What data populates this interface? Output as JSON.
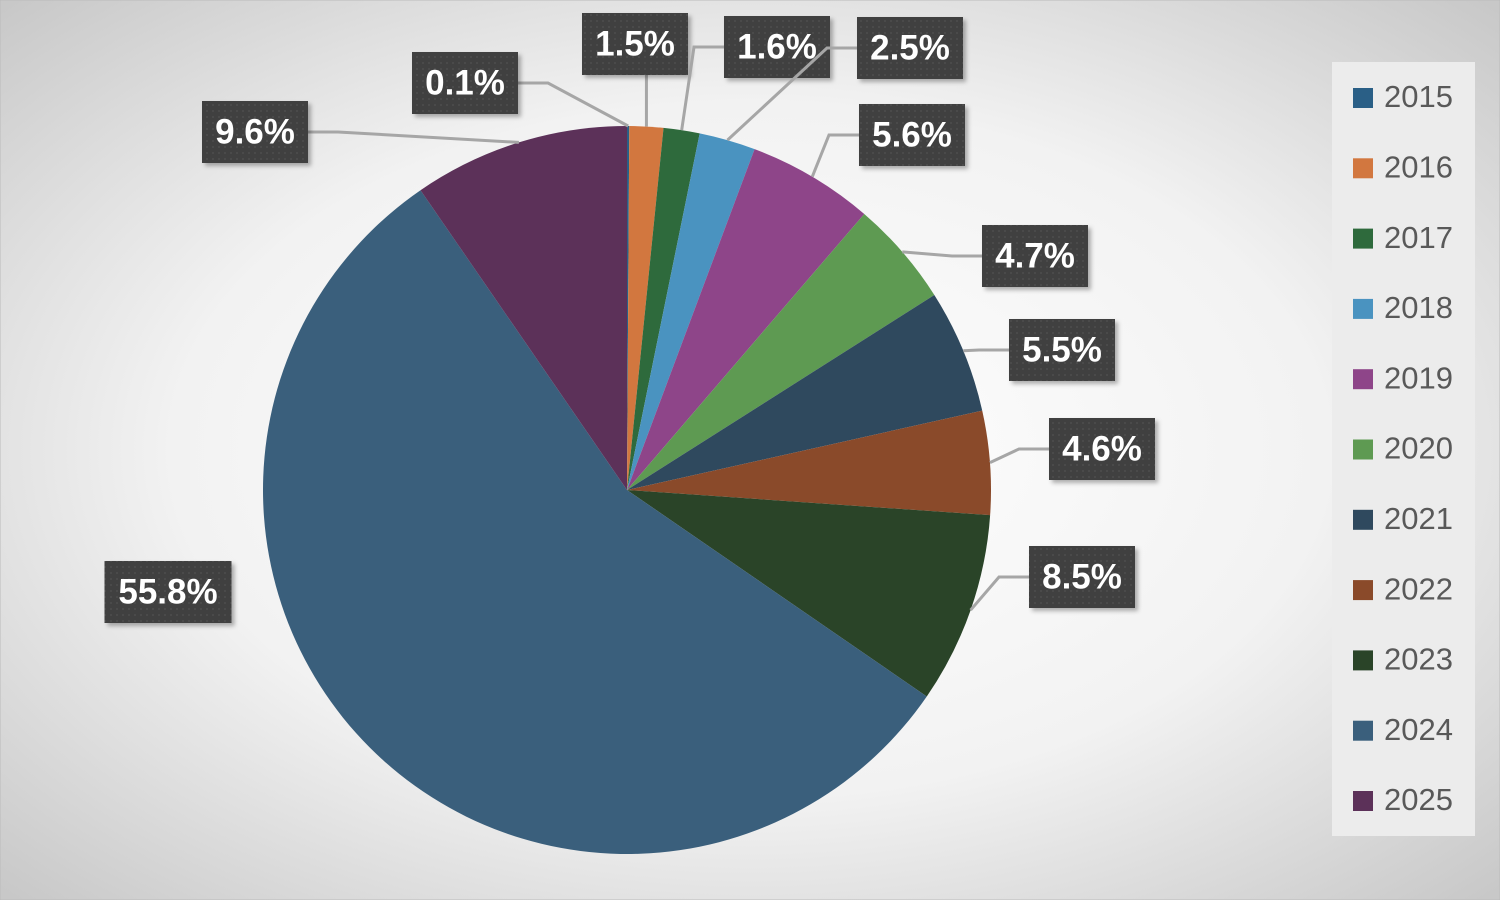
{
  "chart_data": {
    "type": "pie",
    "categories": [
      "2015",
      "2016",
      "2017",
      "2018",
      "2019",
      "2020",
      "2021",
      "2022",
      "2023",
      "2024",
      "2025"
    ],
    "values": [
      0.1,
      1.5,
      1.6,
      2.5,
      5.6,
      4.7,
      5.5,
      4.6,
      8.5,
      55.8,
      9.6
    ],
    "value_labels": [
      "0.1%",
      "1.5%",
      "1.6%",
      "2.5%",
      "5.6%",
      "4.7%",
      "5.5%",
      "4.6%",
      "8.5%",
      "55.8%",
      "9.6%"
    ],
    "colors": [
      "#2a5f86",
      "#d2773f",
      "#2e6a3c",
      "#4a93c0",
      "#8e4589",
      "#5e9a52",
      "#2f495e",
      "#8a4a2a",
      "#2a4428",
      "#3a5f7c",
      "#5c3159"
    ],
    "legend": "right"
  }
}
